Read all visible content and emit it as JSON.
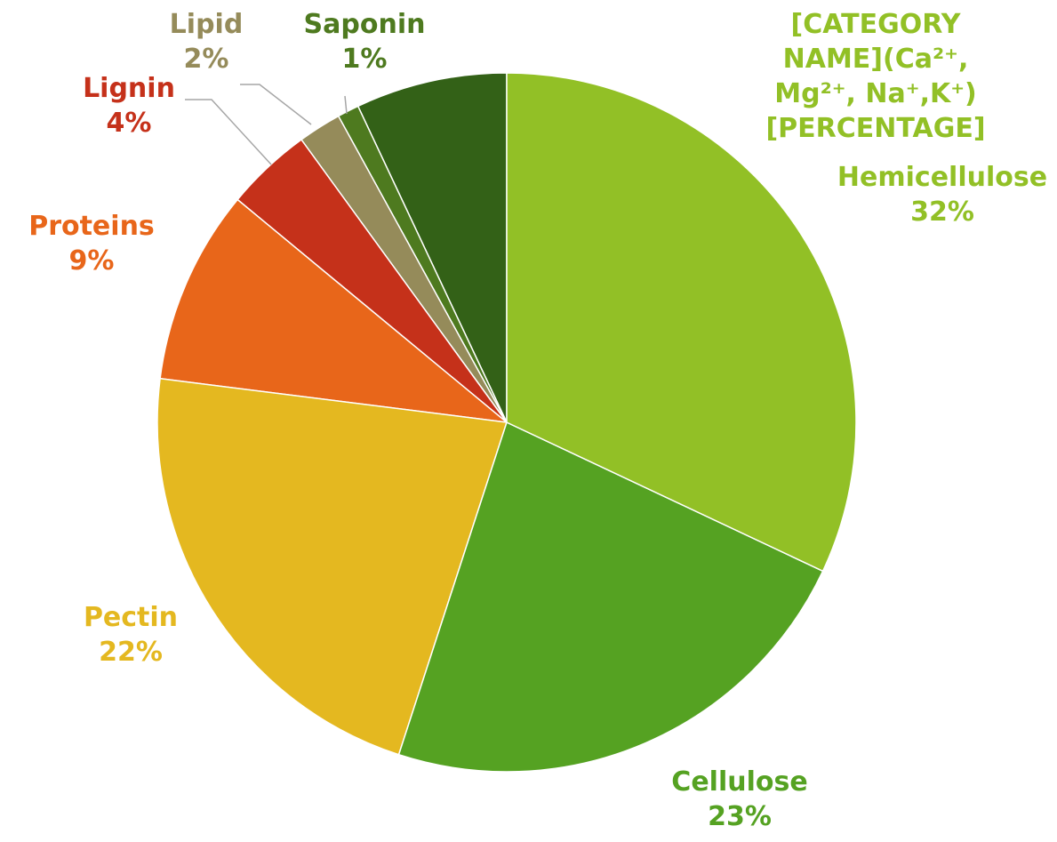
{
  "chart_data": {
    "type": "pie",
    "categories": [
      "Hemicellulose",
      "Cellulose",
      "Pectin",
      "Proteins",
      "Lignin",
      "Lipid",
      "Saponin",
      "[CATEGORY NAME](Ca²⁺, Mg²⁺, Na⁺,K⁺)"
    ],
    "values": [
      32,
      23,
      22,
      9,
      4,
      2,
      1,
      7
    ],
    "value_labels": [
      "32%",
      "23%",
      "22%",
      "9%",
      "4%",
      "2%",
      "1%",
      "[PERCENTAGE]"
    ],
    "colors": [
      "#92c026",
      "#55a222",
      "#e4b820",
      "#e8661a",
      "#c5311a",
      "#958b5a",
      "#4e7a1f",
      "#336117"
    ]
  }
}
